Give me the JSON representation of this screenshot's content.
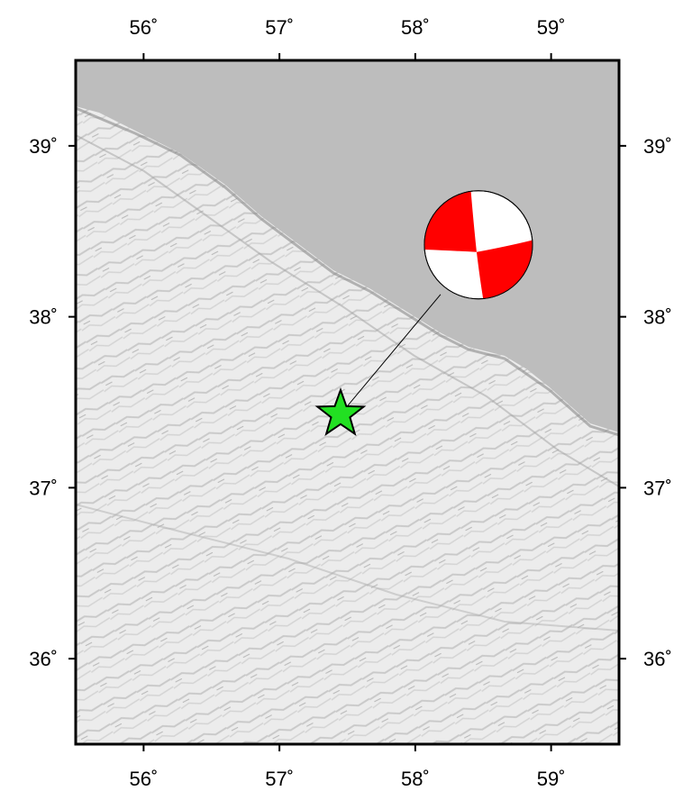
{
  "map": {
    "lon_ticks": [
      {
        "value": 56,
        "label": "56˚"
      },
      {
        "value": 57,
        "label": "57˚"
      },
      {
        "value": 58,
        "label": "58˚"
      },
      {
        "value": 59,
        "label": "59˚"
      }
    ],
    "lat_ticks": [
      {
        "value": 39,
        "label": "39˚"
      },
      {
        "value": 38,
        "label": "38˚"
      },
      {
        "value": 37,
        "label": "37˚"
      },
      {
        "value": 36,
        "label": "36˚"
      }
    ],
    "lon_range": [
      55.5,
      59.5
    ],
    "lat_range": [
      35.5,
      39.5
    ],
    "epicenter": {
      "lon": 57.45,
      "lat": 37.43,
      "color": "#22e022",
      "icon": "star-icon"
    },
    "focal_mechanism": {
      "icon": "beachball-icon",
      "compression_color": "#ff0000",
      "dilatation_color": "#ffffff"
    },
    "colors": {
      "sea": "#bdbdbd",
      "land": "#e8e8e8",
      "frame": "#000000"
    }
  }
}
